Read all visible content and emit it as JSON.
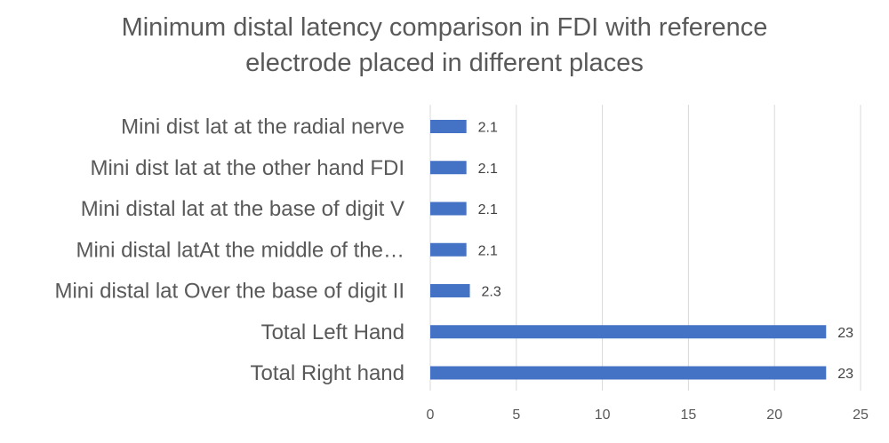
{
  "chart_data": {
    "type": "bar",
    "orientation": "horizontal",
    "title": "Minimum distal latency comparison in FDI with reference electrode placed in different places",
    "title_lines": [
      "Minimum distal latency comparison in FDI with reference",
      "electrode placed in different places"
    ],
    "categories": [
      "Mini dist lat at the radial nerve",
      "Mini dist lat at the other hand FDI",
      "Mini distal lat at the base of digit V",
      "Mini distal latAt the middle of the…",
      "Mini distal lat Over the base of digit II",
      "Total Left Hand",
      "Total Right hand"
    ],
    "values": [
      2.1,
      2.1,
      2.1,
      2.1,
      2.3,
      23,
      23
    ],
    "data_labels": [
      "2.1",
      "2.1",
      "2.1",
      "2.1",
      "2.3",
      "23",
      "23"
    ],
    "xlabel": "",
    "ylabel": "",
    "xlim": [
      0,
      25
    ],
    "xticks": [
      0,
      5,
      10,
      15,
      20,
      25
    ],
    "xtick_labels": [
      "0",
      "5",
      "10",
      "15",
      "20",
      "25"
    ],
    "grid": true,
    "legend": "none",
    "bar_color": "#4472c4"
  }
}
